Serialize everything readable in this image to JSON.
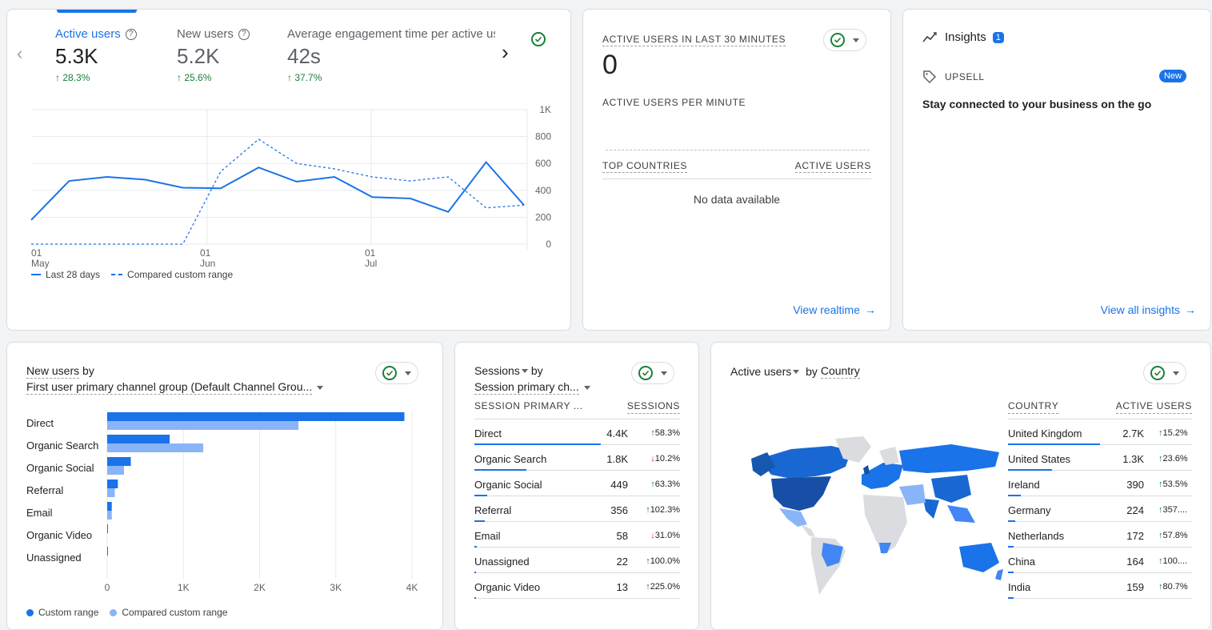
{
  "overview": {
    "metrics": [
      {
        "label": "Active users",
        "value": "5.3K",
        "change": "28.3%"
      },
      {
        "label": "New users",
        "value": "5.2K",
        "change": "25.6%"
      },
      {
        "label": "Average engagement time per active us",
        "value": "42s",
        "change": "37.7%"
      }
    ],
    "legend": {
      "current": "Last 28 days",
      "compared": "Compared custom range"
    }
  },
  "chart_data": [
    {
      "type": "line",
      "x_ticks": [
        [
          "01",
          "May"
        ],
        [
          "01",
          "Jun"
        ],
        [
          "01",
          "Jul"
        ]
      ],
      "y_ticks": [
        "1K",
        "800",
        "600",
        "400",
        "200",
        "0"
      ],
      "ylim": [
        0,
        1000
      ],
      "series": [
        {
          "name": "Last 28 days",
          "values": [
            180,
            470,
            500,
            480,
            420,
            415,
            570,
            465,
            500,
            350,
            340,
            240,
            610,
            290
          ]
        },
        {
          "name": "Compared custom range",
          "values": [
            0,
            0,
            0,
            0,
            0,
            540,
            780,
            600,
            560,
            500,
            470,
            500,
            270,
            290
          ]
        }
      ]
    },
    {
      "type": "bar",
      "categories": [
        "Direct",
        "Organic Search",
        "Organic Social",
        "Referral",
        "Email",
        "Organic Video",
        "Unassigned"
      ],
      "series": [
        {
          "name": "Custom range",
          "values": [
            3900,
            820,
            310,
            140,
            60,
            10,
            10
          ]
        },
        {
          "name": "Compared custom range",
          "values": [
            2510,
            1260,
            220,
            100,
            60,
            0,
            0
          ]
        }
      ],
      "x_ticks": [
        "0",
        "1K",
        "2K",
        "3K",
        "4K"
      ],
      "xlim": [
        0,
        4000
      ]
    }
  ],
  "realtime": {
    "title": "ACTIVE USERS IN LAST 30 MINUTES",
    "value": "0",
    "per_minute": "ACTIVE USERS PER MINUTE",
    "col1": "TOP COUNTRIES",
    "col2": "ACTIVE USERS",
    "empty": "No data available",
    "link": "View realtime"
  },
  "insights": {
    "title": "Insights",
    "count": "1",
    "tag": "UPSELL",
    "badge": "New",
    "text": "Stay connected to your business on the go",
    "link": "View all insights"
  },
  "new_users_card": {
    "title_a": "New users",
    "title_b": " by",
    "dimension": "First user primary channel group (Default Channel Grou..."
  },
  "sessions_card": {
    "title_a": "Sessions",
    "title_b": " by",
    "dimension": "Session primary ch...",
    "col1": "SESSION PRIMARY ...",
    "col2": "SESSIONS",
    "rows": [
      {
        "name": "Direct",
        "value": "4.4K",
        "change": "58.3%",
        "dir": "up",
        "share": 1.0
      },
      {
        "name": "Organic Search",
        "value": "1.8K",
        "change": "10.2%",
        "dir": "down",
        "share": 0.41
      },
      {
        "name": "Organic Social",
        "value": "449",
        "change": "63.3%",
        "dir": "up",
        "share": 0.1
      },
      {
        "name": "Referral",
        "value": "356",
        "change": "102.3%",
        "dir": "up",
        "share": 0.08
      },
      {
        "name": "Email",
        "value": "58",
        "change": "31.0%",
        "dir": "down",
        "share": 0.02
      },
      {
        "name": "Unassigned",
        "value": "22",
        "change": "100.0%",
        "dir": "up",
        "share": 0.01
      },
      {
        "name": "Organic Video",
        "value": "13",
        "change": "225.0%",
        "dir": "up",
        "share": 0.01
      }
    ]
  },
  "country_card": {
    "title_a": "Active users",
    "title_b": " by ",
    "title_c": "Country",
    "col1": "COUNTRY",
    "col2": "ACTIVE USERS",
    "rows": [
      {
        "name": "United Kingdom",
        "value": "2.7K",
        "change": "15.2%",
        "share": 1.0
      },
      {
        "name": "United States",
        "value": "1.3K",
        "change": "23.6%",
        "share": 0.48
      },
      {
        "name": "Ireland",
        "value": "390",
        "change": "53.5%",
        "share": 0.14
      },
      {
        "name": "Germany",
        "value": "224",
        "change": "357....",
        "share": 0.08
      },
      {
        "name": "Netherlands",
        "value": "172",
        "change": "57.8%",
        "share": 0.06
      },
      {
        "name": "China",
        "value": "164",
        "change": "100....",
        "share": 0.06
      },
      {
        "name": "India",
        "value": "159",
        "change": "80.7%",
        "share": 0.06
      }
    ]
  },
  "colors": {
    "primary": "#1a73e8",
    "light": "#8ab4f8",
    "up": "#188038",
    "down": "#d93025"
  }
}
